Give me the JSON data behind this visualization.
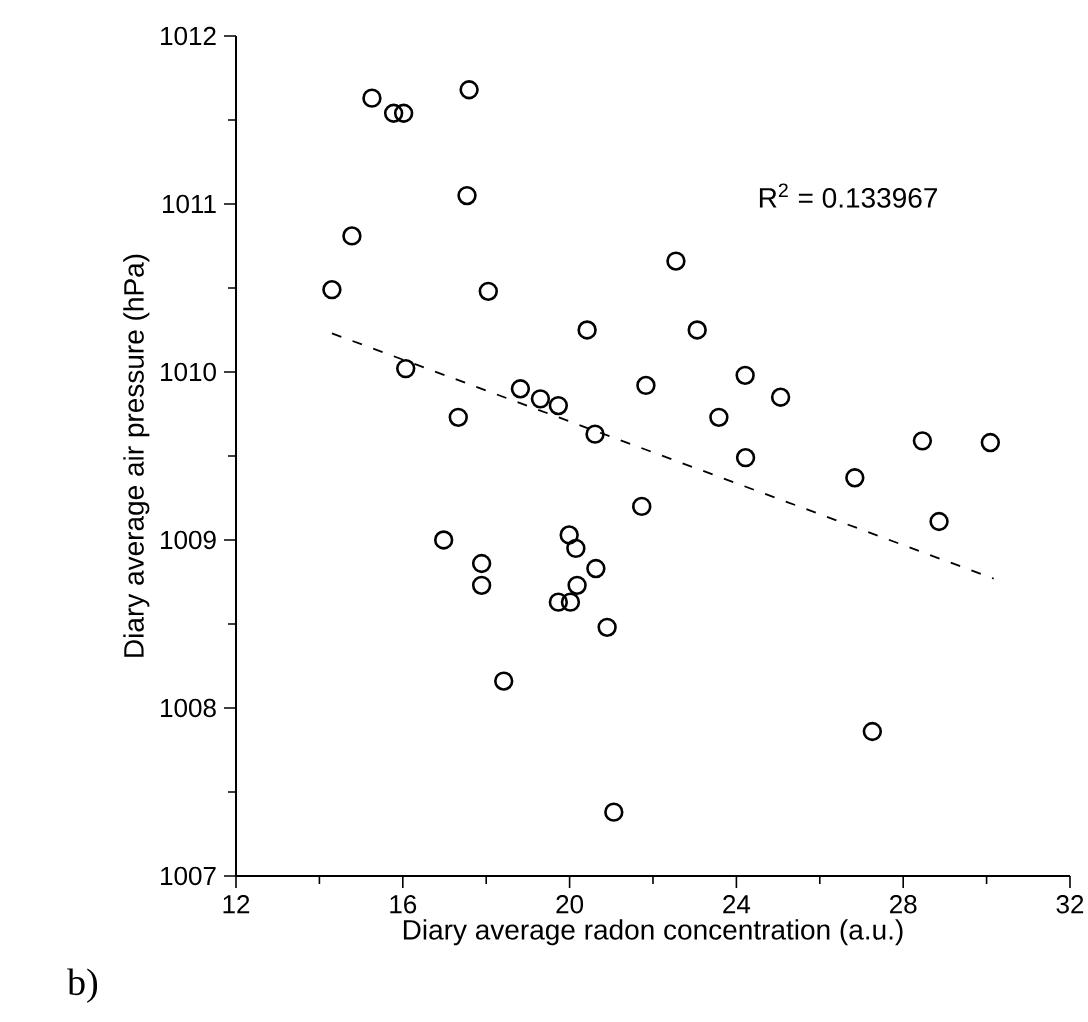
{
  "chart_data": {
    "type": "scatter",
    "xlabel": "Diary average  radon concentration (a.u.)",
    "ylabel": "Diary average air pressure (hPa)",
    "annotations": [
      "R$^{2}$ = 0.133967",
      "b)"
    ],
    "xlim": [
      12,
      32
    ],
    "xticks": [
      12,
      16,
      20,
      24,
      28,
      32
    ],
    "ylim": [
      1007,
      1012
    ],
    "yticks": [
      1007,
      1008,
      1009,
      1010,
      1011,
      1012
    ],
    "series": [
      {
        "marker": "circle",
        "color": "#000000",
        "x": [
          15.26,
          15.78,
          16.02,
          17.59,
          17.54,
          14.78,
          14.3,
          18.05,
          20.42,
          21.83,
          16.07,
          17.33,
          18.82,
          19.3,
          19.73,
          20.61,
          21.73,
          16.98,
          17.89,
          17.89,
          19.99,
          20.15,
          20.63,
          20.18,
          19.73,
          20.02,
          20.9,
          18.42,
          21.06,
          22.55,
          23.06,
          24.21,
          25.06,
          23.58,
          24.22,
          26.84,
          28.46,
          30.09,
          28.86,
          27.26
        ],
        "values": [
          1011.63,
          1011.54,
          1011.54,
          1011.68,
          1011.05,
          1010.81,
          1010.49,
          1010.48,
          1010.25,
          1009.92,
          1010.02,
          1009.73,
          1009.9,
          1009.84,
          1009.8,
          1009.63,
          1009.2,
          1009.0,
          1008.86,
          1008.73,
          1009.03,
          1008.95,
          1008.83,
          1008.73,
          1008.63,
          1008.63,
          1008.48,
          1008.16,
          1007.38,
          1010.66,
          1010.25,
          1009.98,
          1009.85,
          1009.73,
          1009.49,
          1009.37,
          1009.59,
          1009.58,
          1009.11,
          1007.86
        ]
      },
      {
        "type": "line",
        "line_style": "dashed",
        "color": "#000000",
        "x": [
          14.3,
          30.17
        ],
        "values": [
          1010.23,
          1008.77
        ]
      }
    ]
  }
}
